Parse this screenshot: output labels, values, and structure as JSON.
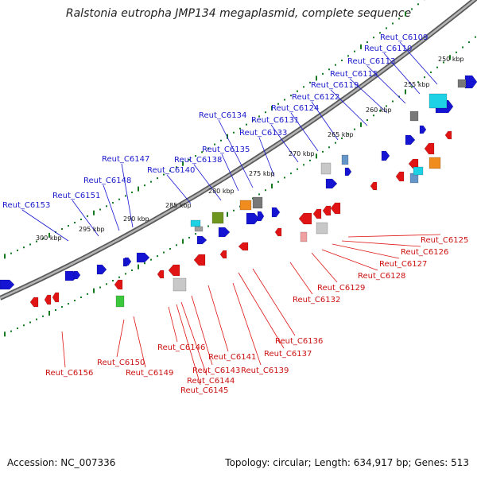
{
  "title": "Ralstonia eutropha JMP134 megaplasmid, complete sequence",
  "footer": {
    "accession": "Accession: NC_007336",
    "topology": "Topology: circular; Length: 634,917 bp; Genes: 513"
  },
  "colors": {
    "forward": "#1414d2",
    "reverse": "#e01414",
    "backbone": "#8c8c8c",
    "tick": "#14781e",
    "cyan": "#1ed2e6",
    "orange": "#f08c1e",
    "green": "#6e961e",
    "gray": "#a0a0a0",
    "lime": "#3cc83c"
  },
  "kbp_marks": [
    {
      "text": "250 kbp"
    },
    {
      "text": "255 kbp"
    },
    {
      "text": "260 kbp"
    },
    {
      "text": "265 kbp"
    },
    {
      "text": "270 kbp"
    },
    {
      "text": "275 kbp"
    },
    {
      "text": "280 kbp"
    },
    {
      "text": "285 kbp"
    },
    {
      "text": "290 kbp"
    },
    {
      "text": "295 kbp"
    },
    {
      "text": "300 kbp"
    }
  ],
  "top_labels": [
    {
      "text": "Reut_C6109"
    },
    {
      "text": "Reut_C6110"
    },
    {
      "text": "Reut_C6113"
    },
    {
      "text": "Reut_C6115"
    },
    {
      "text": "Reut_C6119"
    },
    {
      "text": "Reut_C6122"
    },
    {
      "text": "Reut_C6124"
    },
    {
      "text": "Reut_C6131"
    },
    {
      "text": "Reut_C6133"
    },
    {
      "text": "Reut_C6134"
    },
    {
      "text": "Reut_C6135"
    },
    {
      "text": "Reut_C6138"
    },
    {
      "text": "Reut_C6140"
    },
    {
      "text": "Reut_C6147"
    },
    {
      "text": "Reut_C6148"
    },
    {
      "text": "Reut_C6151"
    },
    {
      "text": "Reut_C6153"
    }
  ],
  "bottom_labels": [
    {
      "text": "Reut_C6125"
    },
    {
      "text": "Reut_C6126"
    },
    {
      "text": "Reut_C6127"
    },
    {
      "text": "Reut_C6128"
    },
    {
      "text": "Reut_C6129"
    },
    {
      "text": "Reut_C6132"
    },
    {
      "text": "Reut_C6136"
    },
    {
      "text": "Reut_C6137"
    },
    {
      "text": "Reut_C6139"
    },
    {
      "text": "Reut_C6141"
    },
    {
      "text": "Reut_C6143"
    },
    {
      "text": "Reut_C6144"
    },
    {
      "text": "Reut_C6145"
    },
    {
      "text": "Reut_C6146"
    },
    {
      "text": "Reut_C6149"
    },
    {
      "text": "Reut_C6150"
    },
    {
      "text": "Reut_C6156"
    }
  ]
}
